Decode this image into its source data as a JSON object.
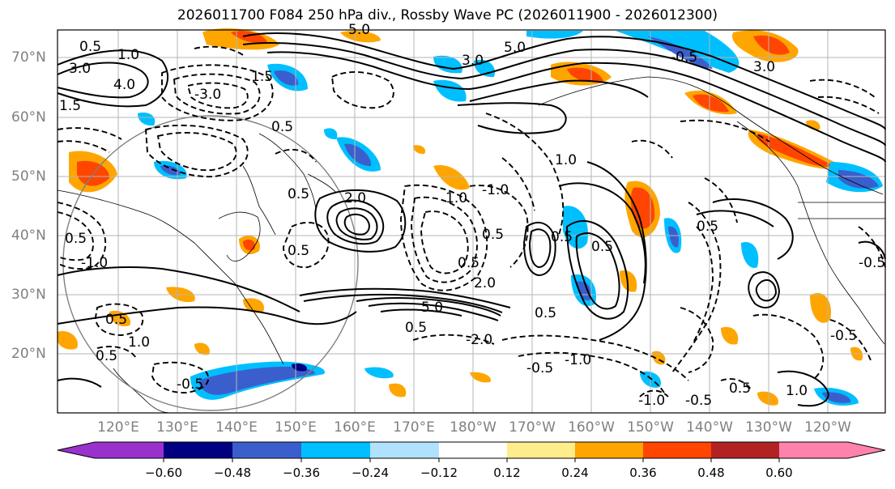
{
  "title": "2026011700 F084 250 hPa div., Rossby Wave PC (2026011900 - 2026012300)",
  "latitude_labels": [
    "70°N",
    "60°N",
    "50°N",
    "40°N",
    "30°N",
    "20°N"
  ],
  "longitude_labels": [
    "120°E",
    "130°E",
    "140°E",
    "150°E",
    "160°E",
    "170°E",
    "180°W",
    "170°W",
    "160°W",
    "150°W",
    "140°W",
    "130°W",
    "120°W"
  ],
  "colorbar": {
    "ticks": [
      "−0.60",
      "−0.48",
      "−0.36",
      "−0.24",
      "−0.12",
      "0.12",
      "0.24",
      "0.36",
      "0.48",
      "0.60"
    ],
    "colors": [
      "#9932cc",
      "#000080",
      "#3a5fcd",
      "#00bfff",
      "#b0e2ff",
      "#ffffff",
      "#ffec8b",
      "#ffa500",
      "#ff4500",
      "#b22222",
      "#ff82ab"
    ]
  },
  "contour_labels": [
    "0.5",
    "1.0",
    "1.5",
    "2.0",
    "3.0",
    "4.0",
    "5.0",
    "-0.5",
    "-1.0",
    "-2.0",
    "-3.0"
  ]
}
